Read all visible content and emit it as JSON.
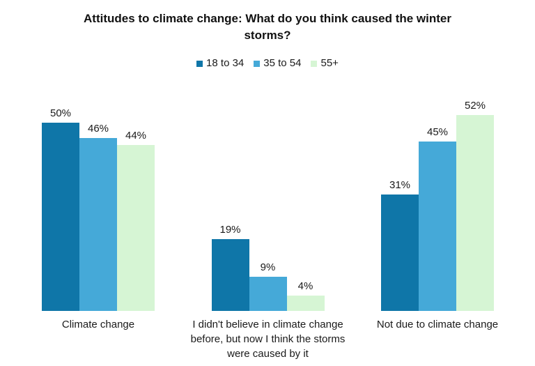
{
  "chart_data": {
    "type": "bar",
    "title": "Attitudes to climate change: What do you think caused the winter storms?",
    "categories": [
      "Climate change",
      "I didn't believe in climate change before, but now I think the storms were caused by it",
      "Not due to climate change"
    ],
    "series": [
      {
        "name": "18 to 34",
        "color": "#0F76A8",
        "values": [
          50,
          19,
          31
        ]
      },
      {
        "name": "35 to 54",
        "color": "#45A9D8",
        "values": [
          46,
          9,
          45
        ]
      },
      {
        "name": "55+",
        "color": "#D6F5D4",
        "values": [
          44,
          4,
          52
        ]
      }
    ],
    "value_suffix": "%",
    "ylim": [
      0,
      55
    ],
    "grid": false,
    "axis_lines": false,
    "legend_position": "top",
    "data_labels": true,
    "background_color": "#FFFFFF",
    "text_color": "#1A1A1A"
  }
}
